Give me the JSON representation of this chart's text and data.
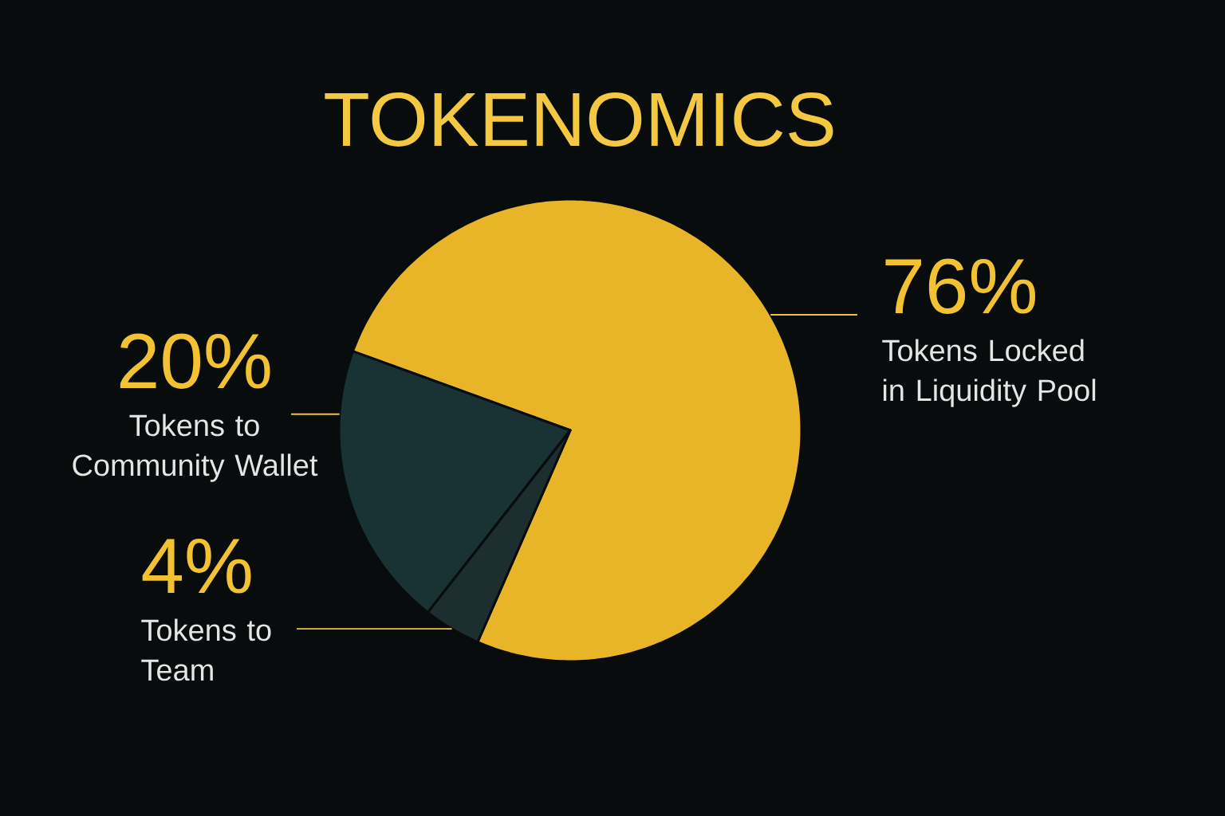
{
  "chart_data": {
    "type": "pie",
    "title": "TOKENOMICS",
    "categories": [
      "Tokens Locked in Liquidity Pool",
      "Tokens to Community Wallet",
      "Tokens to Team"
    ],
    "values": [
      76,
      20,
      4
    ],
    "colors": [
      "#e8b528",
      "#193233",
      "#1c2e2f"
    ],
    "value_labels": [
      "76%",
      "20%",
      "4%"
    ]
  }
}
